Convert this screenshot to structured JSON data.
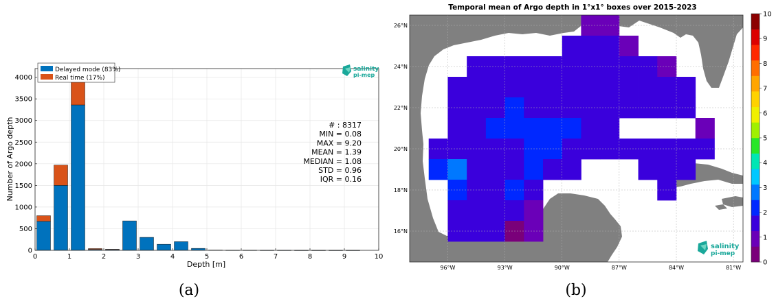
{
  "chart_data": [
    {
      "type": "bar",
      "stacked": true,
      "caption": "(a)",
      "xlabel": "Depth [m]",
      "ylabel": "Number of Argo depth",
      "xlim": [
        0,
        10
      ],
      "ylim": [
        0,
        4200
      ],
      "xticks": [
        "0",
        "1",
        "2",
        "3",
        "4",
        "5",
        "6",
        "7",
        "8",
        "9",
        "10"
      ],
      "yticks": [
        "0",
        "500",
        "1000",
        "1500",
        "2000",
        "2500",
        "3000",
        "3500",
        "4000"
      ],
      "grid": true,
      "legend_position": "top-left",
      "bin_width": 0.4,
      "x": [
        0.25,
        0.75,
        1.25,
        1.75,
        2.25,
        2.75,
        3.25,
        3.75,
        4.25,
        4.75,
        5.25,
        5.75,
        6.25,
        6.75,
        7.25,
        7.75,
        8.25,
        8.75,
        9.25
      ],
      "series": [
        {
          "name": "Delayed mode (83%)",
          "color": "#0072bd",
          "values": [
            670,
            1500,
            3360,
            20,
            20,
            680,
            300,
            140,
            200,
            45,
            6,
            4,
            4,
            3,
            3,
            2,
            2,
            2,
            2
          ]
        },
        {
          "name": "Real time (17%)",
          "color": "#d95319",
          "values": [
            130,
            470,
            740,
            20,
            5,
            0,
            0,
            0,
            0,
            0,
            0,
            0,
            0,
            0,
            0,
            0,
            0,
            0,
            0
          ]
        }
      ],
      "stats": [
        "# : 8317",
        "MIN = 0.08",
        "MAX =  9.20",
        "MEAN = 1.39",
        "MEDIAN = 1.08",
        "STD = 0.96",
        "IQR = 0.16"
      ],
      "logo": {
        "line1": "salinity",
        "line2": "pi-mep"
      }
    },
    {
      "type": "heatmap",
      "caption": "(b)",
      "title": "Temporal mean of Argo depth in 1°x1° boxes over 2015-2023",
      "xlim": [
        -98,
        -80.5
      ],
      "ylim": [
        14.5,
        26.5
      ],
      "xticks": [
        {
          "value": -96,
          "label": "96°W"
        },
        {
          "value": -93,
          "label": "93°W"
        },
        {
          "value": -90,
          "label": "90°W"
        },
        {
          "value": -87,
          "label": "87°W"
        },
        {
          "value": -84,
          "label": "84°W"
        },
        {
          "value": -81,
          "label": "81°W"
        }
      ],
      "yticks": [
        {
          "value": 16,
          "label": "16°N"
        },
        {
          "value": 18,
          "label": "18°N"
        },
        {
          "value": 20,
          "label": "20°N"
        },
        {
          "value": 22,
          "label": "22°N"
        },
        {
          "value": 24,
          "label": "24°N"
        },
        {
          "value": 26,
          "label": "26°N"
        }
      ],
      "colorbar": {
        "min": 0,
        "max": 10,
        "ticks": [
          "0",
          "1",
          "2",
          "3",
          "4",
          "5",
          "6",
          "7",
          "8",
          "9",
          "10"
        ],
        "colors": [
          "#7a007a",
          "#6a00b8",
          "#3a00dc",
          "#0028ff",
          "#0078ff",
          "#00c8ff",
          "#00e6b4",
          "#28e628",
          "#a0f000",
          "#f0f000",
          "#ffd200",
          "#ffa500",
          "#ff6e00",
          "#ff2800",
          "#dc0000",
          "#8c0000"
        ]
      },
      "land_color": "#808080",
      "cells": [
        {
          "lon": -88.5,
          "lat": 26,
          "value": 1.1
        },
        {
          "lon": -87.5,
          "lat": 26,
          "value": 1.1
        },
        {
          "lon": -89.5,
          "lat": 25,
          "value": 1.4
        },
        {
          "lon": -88.5,
          "lat": 25,
          "value": 1.3
        },
        {
          "lon": -87.5,
          "lat": 25,
          "value": 1.3
        },
        {
          "lon": -86.5,
          "lat": 25,
          "value": 1.2
        },
        {
          "lon": -94.5,
          "lat": 24,
          "value": 1.4
        },
        {
          "lon": -93.5,
          "lat": 24,
          "value": 1.4
        },
        {
          "lon": -92.5,
          "lat": 24,
          "value": 1.4
        },
        {
          "lon": -91.5,
          "lat": 24,
          "value": 1.4
        },
        {
          "lon": -90.5,
          "lat": 24,
          "value": 1.4
        },
        {
          "lon": -89.5,
          "lat": 24,
          "value": 1.4
        },
        {
          "lon": -88.5,
          "lat": 24,
          "value": 1.4
        },
        {
          "lon": -87.5,
          "lat": 24,
          "value": 1.4
        },
        {
          "lon": -86.5,
          "lat": 24,
          "value": 1.4
        },
        {
          "lon": -85.5,
          "lat": 24,
          "value": 1.4
        },
        {
          "lon": -84.5,
          "lat": 24,
          "value": 1.2
        },
        {
          "lon": -95.5,
          "lat": 23,
          "value": 1.4
        },
        {
          "lon": -94.5,
          "lat": 23,
          "value": 1.4
        },
        {
          "lon": -93.5,
          "lat": 23,
          "value": 1.4
        },
        {
          "lon": -92.5,
          "lat": 23,
          "value": 1.4
        },
        {
          "lon": -91.5,
          "lat": 23,
          "value": 1.4
        },
        {
          "lon": -90.5,
          "lat": 23,
          "value": 1.4
        },
        {
          "lon": -89.5,
          "lat": 23,
          "value": 1.4
        },
        {
          "lon": -88.5,
          "lat": 23,
          "value": 1.4
        },
        {
          "lon": -87.5,
          "lat": 23,
          "value": 1.4
        },
        {
          "lon": -86.5,
          "lat": 23,
          "value": 1.4
        },
        {
          "lon": -85.5,
          "lat": 23,
          "value": 1.4
        },
        {
          "lon": -84.5,
          "lat": 23,
          "value": 1.4
        },
        {
          "lon": -83.5,
          "lat": 23,
          "value": 1.4
        },
        {
          "lon": -95.5,
          "lat": 22,
          "value": 1.4
        },
        {
          "lon": -94.5,
          "lat": 22,
          "value": 1.4
        },
        {
          "lon": -93.5,
          "lat": 22,
          "value": 1.7
        },
        {
          "lon": -92.5,
          "lat": 22,
          "value": 2.0
        },
        {
          "lon": -91.5,
          "lat": 22,
          "value": 1.5
        },
        {
          "lon": -90.5,
          "lat": 22,
          "value": 1.5
        },
        {
          "lon": -89.5,
          "lat": 22,
          "value": 1.7
        },
        {
          "lon": -88.5,
          "lat": 22,
          "value": 1.4
        },
        {
          "lon": -87.5,
          "lat": 22,
          "value": 1.4
        },
        {
          "lon": -86.5,
          "lat": 22,
          "value": 1.4
        },
        {
          "lon": -85.5,
          "lat": 22,
          "value": 1.4
        },
        {
          "lon": -84.5,
          "lat": 22,
          "value": 1.4
        },
        {
          "lon": -83.5,
          "lat": 22,
          "value": 1.4
        },
        {
          "lon": -95.5,
          "lat": 21,
          "value": 1.4
        },
        {
          "lon": -94.5,
          "lat": 21,
          "value": 1.7
        },
        {
          "lon": -93.5,
          "lat": 21,
          "value": 2.0
        },
        {
          "lon": -92.5,
          "lat": 21,
          "value": 2.0
        },
        {
          "lon": -91.5,
          "lat": 21,
          "value": 2.0
        },
        {
          "lon": -90.5,
          "lat": 21,
          "value": 2.0
        },
        {
          "lon": -89.5,
          "lat": 21,
          "value": 2.0
        },
        {
          "lon": -88.5,
          "lat": 21,
          "value": 1.8
        },
        {
          "lon": -87.5,
          "lat": 21,
          "value": 1.8
        },
        {
          "lon": -82.5,
          "lat": 21,
          "value": 1.1
        },
        {
          "lon": -96.5,
          "lat": 20,
          "value": 1.4
        },
        {
          "lon": -95.5,
          "lat": 20,
          "value": 1.4
        },
        {
          "lon": -94.5,
          "lat": 20,
          "value": 1.4
        },
        {
          "lon": -93.5,
          "lat": 20,
          "value": 1.4
        },
        {
          "lon": -92.5,
          "lat": 20,
          "value": 1.7
        },
        {
          "lon": -91.5,
          "lat": 20,
          "value": 2.0
        },
        {
          "lon": -90.5,
          "lat": 20,
          "value": 2.0
        },
        {
          "lon": -89.5,
          "lat": 20,
          "value": 1.5
        },
        {
          "lon": -88.5,
          "lat": 20,
          "value": 1.5
        },
        {
          "lon": -87.5,
          "lat": 20,
          "value": 1.5
        },
        {
          "lon": -86.5,
          "lat": 20,
          "value": 1.5
        },
        {
          "lon": -85.5,
          "lat": 20,
          "value": 1.5
        },
        {
          "lon": -84.5,
          "lat": 20,
          "value": 1.5
        },
        {
          "lon": -83.5,
          "lat": 20,
          "value": 1.5
        },
        {
          "lon": -82.5,
          "lat": 20,
          "value": 1.5
        },
        {
          "lon": -96.5,
          "lat": 19,
          "value": 2.2
        },
        {
          "lon": -95.5,
          "lat": 19,
          "value": 2.6
        },
        {
          "lon": -94.5,
          "lat": 19,
          "value": 1.8
        },
        {
          "lon": -93.5,
          "lat": 19,
          "value": 1.8
        },
        {
          "lon": -92.5,
          "lat": 19,
          "value": 1.7
        },
        {
          "lon": -91.5,
          "lat": 19,
          "value": 2.0
        },
        {
          "lon": -90.5,
          "lat": 19,
          "value": 1.4
        },
        {
          "lon": -89.5,
          "lat": 19,
          "value": 1.4
        },
        {
          "lon": -85.5,
          "lat": 19,
          "value": 1.5
        },
        {
          "lon": -84.5,
          "lat": 19,
          "value": 1.5
        },
        {
          "lon": -83.5,
          "lat": 19,
          "value": 1.5
        },
        {
          "lon": -95.5,
          "lat": 18,
          "value": 2.0
        },
        {
          "lon": -94.5,
          "lat": 18,
          "value": 1.8
        },
        {
          "lon": -93.5,
          "lat": 18,
          "value": 1.3
        },
        {
          "lon": -92.5,
          "lat": 18,
          "value": 2.2
        },
        {
          "lon": -91.5,
          "lat": 18,
          "value": 1.8
        },
        {
          "lon": -84.5,
          "lat": 18,
          "value": 1.8
        },
        {
          "lon": -95.5,
          "lat": 17,
          "value": 1.8
        },
        {
          "lon": -94.5,
          "lat": 17,
          "value": 1.8
        },
        {
          "lon": -93.5,
          "lat": 17,
          "value": 1.8
        },
        {
          "lon": -92.5,
          "lat": 17,
          "value": 1.3
        },
        {
          "lon": -91.5,
          "lat": 17,
          "value": 1.1
        },
        {
          "lon": -95.5,
          "lat": 16,
          "value": 1.4
        },
        {
          "lon": -94.5,
          "lat": 16,
          "value": 1.8
        },
        {
          "lon": -93.5,
          "lat": 16,
          "value": 1.8
        },
        {
          "lon": -92.5,
          "lat": 16,
          "value": 0.6
        },
        {
          "lon": -91.5,
          "lat": 16,
          "value": 1.2
        }
      ],
      "logo": {
        "line1": "salinity",
        "line2": "pi-mep"
      }
    }
  ]
}
